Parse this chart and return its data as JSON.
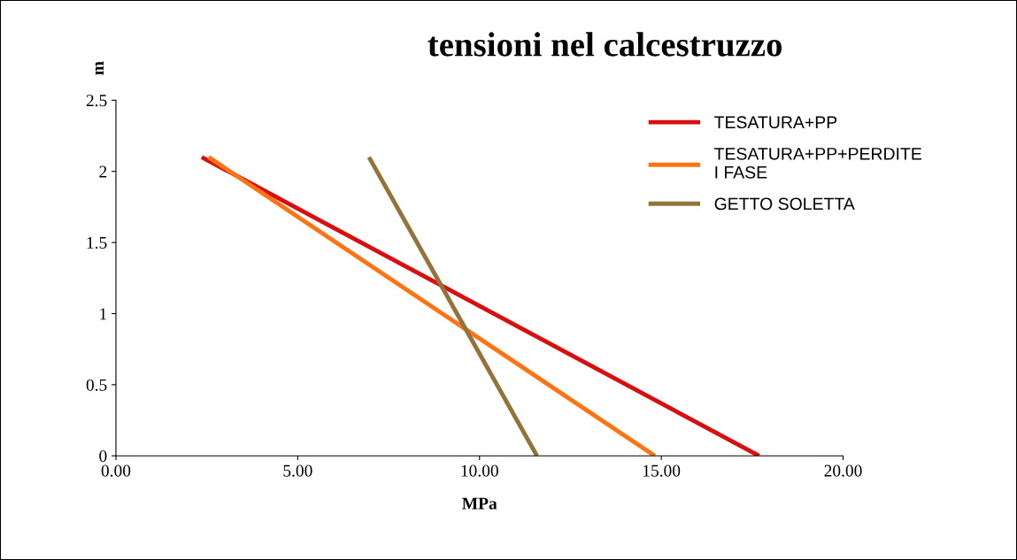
{
  "chart_data": {
    "type": "line",
    "title": "tensioni nel calcestruzzo",
    "xlabel": "MPa",
    "ylabel": "m",
    "xlim": [
      0,
      20
    ],
    "xticks": [
      {
        "value": 0,
        "label": "0.00"
      },
      {
        "value": 5,
        "label": "5.00"
      },
      {
        "value": 10,
        "label": "10.00"
      },
      {
        "value": 15,
        "label": "15.00"
      },
      {
        "value": 20,
        "label": "20.00"
      }
    ],
    "ylim": [
      0,
      2.5
    ],
    "yticks": [
      0,
      0.5,
      1,
      1.5,
      2,
      2.5
    ],
    "grid": false,
    "legend": "top right",
    "marker": "none",
    "line_style": "solid",
    "series": [
      {
        "name": "TESATURA+PP",
        "color": "#d90f0f",
        "x": [
          2.36,
          17.69
        ],
        "values": [
          2.1,
          0
        ]
      },
      {
        "name": "TESATURA+PP+PERDITE\nI FASE",
        "color": "#ff7410",
        "x": [
          2.55,
          14.82
        ],
        "values": [
          2.1,
          0
        ]
      },
      {
        "name": "GETTO SOLETTA",
        "color": "#94733a",
        "x": [
          6.96,
          11.58
        ],
        "values": [
          2.1,
          0
        ]
      }
    ]
  }
}
